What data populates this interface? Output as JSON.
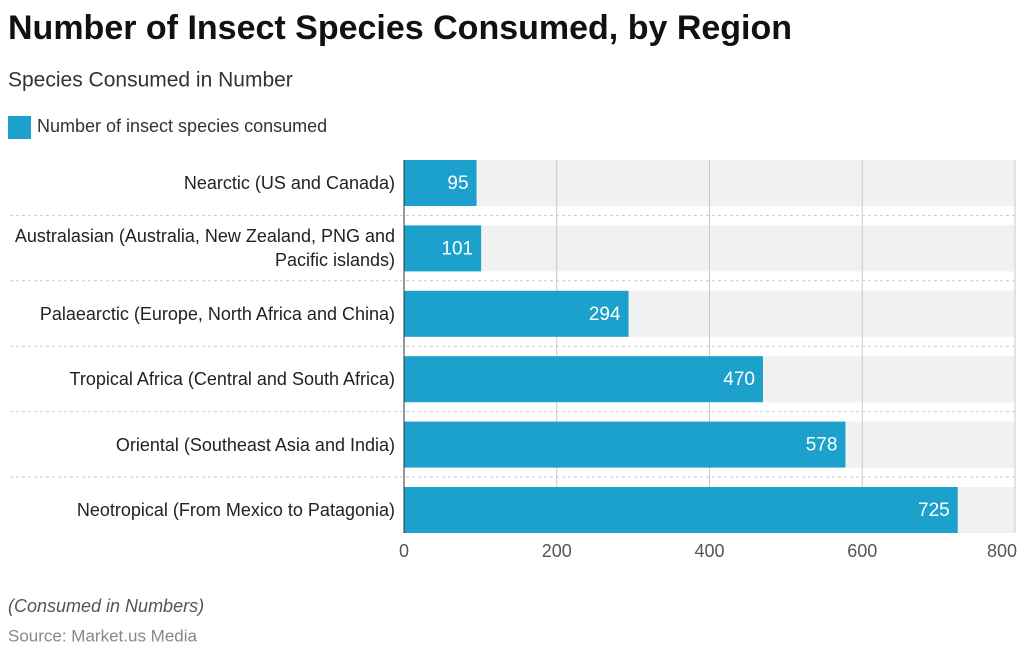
{
  "chart_data": {
    "type": "barh",
    "title": "Number of Insect Species Consumed, by Region",
    "subtitle": "Species Consumed in Number",
    "categories": [
      "Nearctic (US and Canada)",
      "Australasian (Australia, New Zealand, PNG and Pacific islands)",
      "Palaearctic (Europe, North Africa and China)",
      "Tropical Africa (Central and South Africa)",
      "Oriental (Southeast Asia and India)",
      "Neotropical (From Mexico to Patagonia)"
    ],
    "series": [
      {
        "name": "Number of insect species consumed",
        "color": "#1ba1cc",
        "values": [
          95,
          101,
          294,
          470,
          578,
          725
        ]
      }
    ],
    "xlim": [
      0,
      800
    ],
    "xticks": [
      0,
      200,
      400,
      600,
      800
    ],
    "grid": true,
    "note": "(Consumed in Numbers)",
    "source": "Source: Market.us Media"
  }
}
